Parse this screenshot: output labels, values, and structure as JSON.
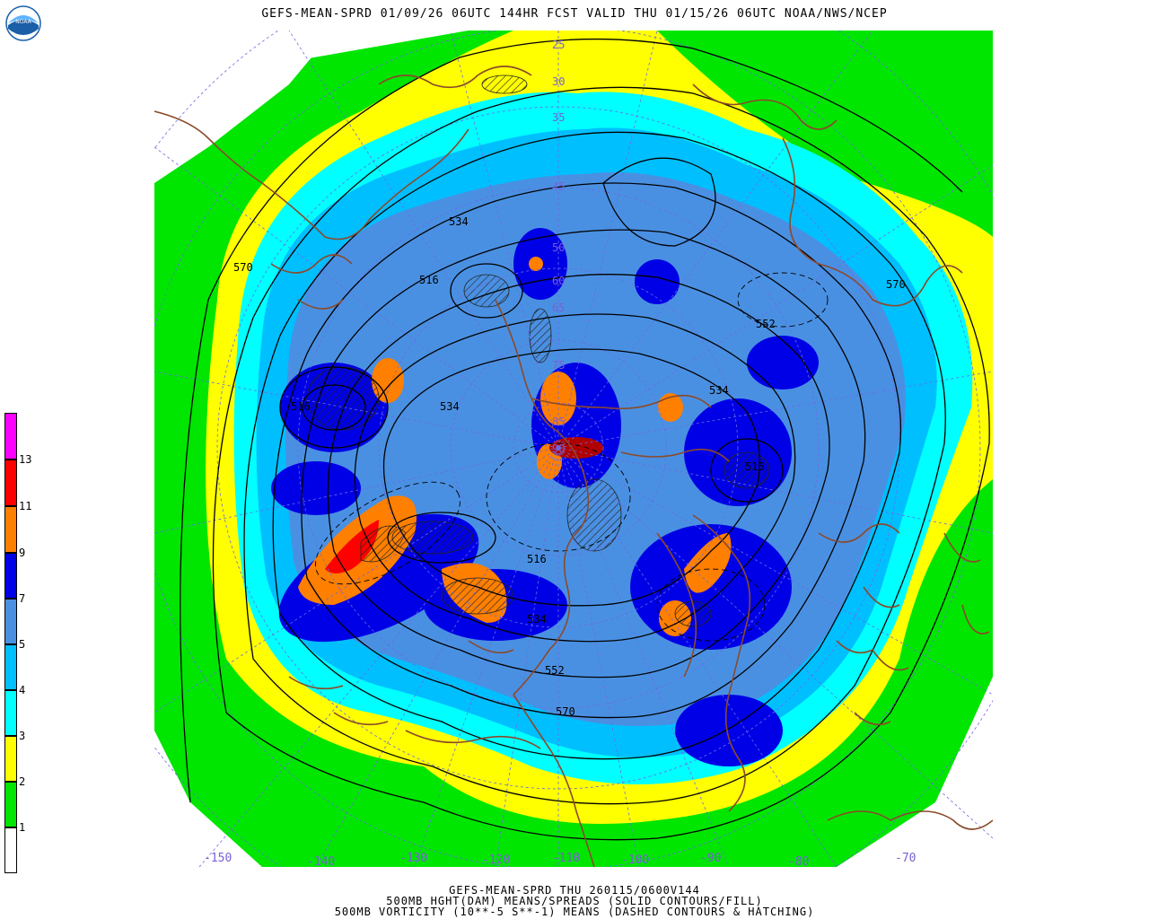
{
  "header": {
    "title": "GEFS-MEAN-SPRD 01/09/26 06UTC 144HR FCST VALID THU 01/15/26 06UTC NOAA/NWS/NCEP",
    "logo_text": "NOAA"
  },
  "legend": {
    "colors": [
      "#ffffff",
      "#00e600",
      "#ffff00",
      "#00ffff",
      "#00bfff",
      "#4a90e2",
      "#0000e6",
      "#ff7f00",
      "#ff0000",
      "#ff00ff"
    ],
    "labels": [
      "1",
      "2",
      "3",
      "4",
      "5",
      "7",
      "9",
      "11",
      "13"
    ]
  },
  "map": {
    "contour_labels": [
      "534",
      "516",
      "570",
      "516",
      "534",
      "552",
      "570",
      "534",
      "516",
      "516",
      "552",
      "534",
      "570"
    ],
    "latitude_labels": [
      "25",
      "30",
      "35",
      "45",
      "50",
      "60",
      "65",
      "75",
      "85",
      "90"
    ],
    "longitude_labels": [
      "-150",
      "-140",
      "-130",
      "-120",
      "-110",
      "-100",
      "-90",
      "-80",
      "-70"
    ]
  },
  "footer": {
    "line1": "GEFS-MEAN-SPRD THU 260115/0600V144",
    "line2": "500MB HGHT(DAM) MEANS/SPREADS (SOLID CONTOURS/FILL)",
    "line3": "500MB VORTICITY (10**-5 S**-1) MEANS (DASHED CONTOURS & HATCHING)"
  }
}
